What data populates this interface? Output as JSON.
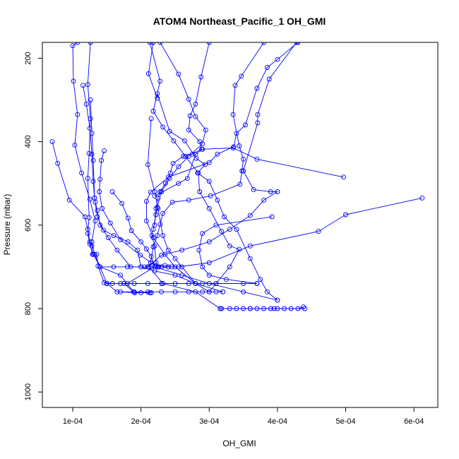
{
  "chart_data": {
    "type": "scatter",
    "title": "ATOM4 Northeast_Pacific_1 OH_GMI",
    "xlabel": "OH_GMI",
    "ylabel": "Pressure (mbar)",
    "x_ticks": [
      0.0001,
      0.0002,
      0.0003,
      0.0004,
      0.0005,
      0.0006
    ],
    "x_tick_labels": [
      "1e-04",
      "2e-04",
      "3e-04",
      "4e-04",
      "5e-04",
      "6e-04"
    ],
    "y_ticks": [
      200,
      400,
      600,
      800,
      1000
    ],
    "y_tick_labels": [
      "200",
      "400",
      "600",
      "800",
      "1000"
    ],
    "xlim": [
      5.55e-05,
      0.000635
    ],
    "ylim": [
      1037,
      162
    ],
    "y_reversed": true,
    "grid": false,
    "color": "#0000ff",
    "marker": "open-circle",
    "connect_points": true,
    "series": [
      {
        "points": [
          [
            0.000107,
            162
          ],
          [
            0.0001,
            170
          ],
          [
            0.000101,
            255
          ],
          [
            0.000107,
            335
          ],
          [
            0.000103,
            408
          ],
          [
            0.000113,
            475
          ],
          [
            0.000125,
            538
          ],
          [
            0.000133,
            590
          ],
          [
            0.000128,
            640
          ],
          [
            0.000132,
            670
          ],
          [
            0.00014,
            700
          ],
          [
            0.00015,
            740
          ],
          [
            0.000165,
            760
          ],
          [
            0.0002,
            762
          ],
          [
            0.000215,
            762
          ]
        ]
      },
      {
        "points": [
          [
            0.000126,
            162
          ],
          [
            0.000122,
            263
          ],
          [
            0.000126,
            345
          ],
          [
            0.000124,
            428
          ],
          [
            0.000122,
            488
          ],
          [
            0.000124,
            582
          ],
          [
            0.000122,
            620
          ],
          [
            0.000125,
            645
          ],
          [
            0.000129,
            670
          ],
          [
            0.000135,
            670
          ],
          [
            0.000137,
            698
          ],
          [
            0.000146,
            738
          ],
          [
            0.000158,
            740
          ],
          [
            0.000175,
            740
          ],
          [
            0.000191,
            762
          ],
          [
            0.000213,
            762
          ]
        ]
      },
      {
        "points": [
          [
            7e-05,
            400
          ],
          [
            7.8e-05,
            452
          ],
          [
            9.5e-05,
            540
          ],
          [
            0.000118,
            580
          ],
          [
            0.000122,
            610
          ],
          [
            0.000125,
            640
          ],
          [
            0.000128,
            650
          ],
          [
            0.00013,
            670
          ],
          [
            0.00014,
            700
          ],
          [
            0.00017,
            720
          ],
          [
            0.000189,
            760
          ]
        ]
      },
      {
        "points": [
          [
            0.000115,
            265
          ],
          [
            0.00012,
            310
          ],
          [
            0.000125,
            368
          ],
          [
            0.000128,
            430
          ],
          [
            0.00013,
            495
          ],
          [
            0.000132,
            535
          ],
          [
            0.000133,
            545
          ],
          [
            0.000136,
            565
          ],
          [
            0.00014,
            600
          ],
          [
            0.000152,
            630
          ],
          [
            0.000165,
            660
          ],
          [
            0.000185,
            700
          ],
          [
            0.000205,
            700
          ],
          [
            0.000225,
            700
          ],
          [
            0.00024,
            700
          ]
        ]
      },
      {
        "points": [
          [
            0.000126,
            300
          ],
          [
            0.000128,
            380
          ],
          [
            0.00013,
            445
          ],
          [
            0.000132,
            535
          ],
          [
            0.000136,
            580
          ],
          [
            0.000145,
            612
          ],
          [
            0.00016,
            625
          ],
          [
            0.000181,
            640
          ],
          [
            0.000195,
            660
          ],
          [
            0.0002,
            700
          ],
          [
            0.00022,
            710
          ],
          [
            0.00025,
            720
          ],
          [
            0.00028,
            740
          ],
          [
            0.00032,
            760
          ]
        ]
      },
      {
        "points": [
          [
            0.000146,
            422
          ],
          [
            0.000142,
            445
          ],
          [
            0.00014,
            490
          ],
          [
            0.000139,
            520
          ],
          [
            0.000143,
            560
          ],
          [
            0.000155,
            595
          ],
          [
            0.00017,
            635
          ],
          [
            0.000199,
            672
          ],
          [
            0.000221,
            697
          ],
          [
            0.000235,
            697
          ],
          [
            0.000245,
            700
          ]
        ]
      },
      {
        "points": [
          [
            0.000158,
            520
          ],
          [
            0.000172,
            548
          ],
          [
            0.000181,
            583
          ],
          [
            0.000186,
            613
          ],
          [
            0.0002,
            640
          ],
          [
            0.000208,
            657
          ],
          [
            0.000215,
            675
          ],
          [
            0.00022,
            700
          ],
          [
            0.00026,
            720
          ],
          [
            0.0003,
            740
          ],
          [
            0.00035,
            760
          ],
          [
            0.0004,
            780
          ]
        ]
      },
      {
        "points": [
          [
            0.000213,
            162
          ],
          [
            0.000228,
            255
          ],
          [
            0.000218,
            327
          ],
          [
            0.000232,
            365
          ],
          [
            0.000248,
            398
          ],
          [
            0.000265,
            435
          ],
          [
            0.000284,
            475
          ],
          [
            0.000286,
            520
          ],
          [
            0.0003,
            560
          ],
          [
            0.000318,
            615
          ],
          [
            0.00033,
            650
          ],
          [
            0.000344,
            658
          ],
          [
            0.00033,
            700
          ],
          [
            0.00031,
            740
          ],
          [
            0.0003,
            760
          ]
        ]
      },
      {
        "points": [
          [
            0.000218,
            162
          ],
          [
            0.000211,
            237
          ],
          [
            0.000224,
            296
          ],
          [
            0.000224,
            285
          ],
          [
            0.000242,
            375
          ],
          [
            0.000264,
            398
          ],
          [
            0.000281,
            440
          ],
          [
            0.000294,
            455
          ],
          [
            0.000283,
            475
          ],
          [
            0.0003,
            495
          ],
          [
            0.000312,
            540
          ],
          [
            0.000322,
            580
          ],
          [
            0.00034,
            610
          ],
          [
            0.00036,
            680
          ],
          [
            0.000375,
            730
          ],
          [
            0.000385,
            760
          ],
          [
            0.0004,
            780
          ]
        ]
      },
      {
        "points": [
          [
            0.000228,
            162
          ],
          [
            0.000255,
            238
          ],
          [
            0.00027,
            298
          ],
          [
            0.00028,
            340
          ],
          [
            0.000295,
            372
          ],
          [
            0.00029,
            405
          ],
          [
            0.00027,
            435
          ],
          [
            0.000255,
            460
          ],
          [
            0.000242,
            488
          ],
          [
            0.00023,
            520
          ],
          [
            0.000224,
            557
          ],
          [
            0.000222,
            575
          ],
          [
            0.000218,
            610
          ],
          [
            0.000216,
            625
          ],
          [
            0.00022,
            650
          ],
          [
            0.000222,
            690
          ],
          [
            0.000226,
            700
          ]
        ]
      },
      {
        "points": [
          [
            0.0003,
            162
          ],
          [
            0.000288,
            245
          ],
          [
            0.00028,
            310
          ],
          [
            0.000272,
            338
          ],
          [
            0.00027,
            372
          ],
          [
            0.000286,
            400
          ],
          [
            0.000289,
            418
          ],
          [
            0.000275,
            430
          ],
          [
            0.000262,
            435
          ],
          [
            0.000247,
            452
          ],
          [
            0.000243,
            475
          ],
          [
            0.000236,
            500
          ],
          [
            0.000228,
            520
          ],
          [
            0.000225,
            535
          ],
          [
            0.000222,
            560
          ],
          [
            0.00022,
            600
          ]
        ]
      },
      {
        "points": [
          [
            0.00043,
            162
          ],
          [
            0.0004,
            203
          ],
          [
            0.000385,
            222
          ],
          [
            0.00037,
            272
          ],
          [
            0.000353,
            360
          ],
          [
            0.00034,
            380
          ],
          [
            0.000336,
            412
          ],
          [
            0.000312,
            430
          ],
          [
            0.0003,
            450
          ],
          [
            0.00024,
            485
          ],
          [
            0.000214,
            521
          ],
          [
            0.000208,
            543
          ],
          [
            0.000208,
            590
          ],
          [
            0.000218,
            630
          ],
          [
            0.000235,
            670
          ],
          [
            0.00025,
            700
          ],
          [
            0.00028,
            740
          ]
        ]
      },
      {
        "points": [
          [
            0.00038,
            162
          ],
          [
            0.000347,
            243
          ],
          [
            0.000338,
            265
          ],
          [
            0.000335,
            335
          ],
          [
            0.000344,
            410
          ],
          [
            0.00035,
            442
          ],
          [
            0.000348,
            470
          ],
          [
            0.000345,
            502
          ],
          [
            0.000302,
            530
          ],
          [
            0.00027,
            540
          ],
          [
            0.000246,
            545
          ],
          [
            0.000232,
            572
          ],
          [
            0.000228,
            598
          ],
          [
            0.000224,
            625
          ],
          [
            0.000218,
            652
          ],
          [
            0.000214,
            690
          ],
          [
            0.000212,
            700
          ],
          [
            0.000232,
            740
          ],
          [
            0.00028,
            760
          ],
          [
            0.000316,
            800
          ],
          [
            0.00036,
            800
          ],
          [
            0.000395,
            800
          ],
          [
            0.00044,
            800
          ]
        ]
      },
      {
        "points": [
          [
            0.000428,
            162
          ],
          [
            0.000388,
            250
          ],
          [
            0.000371,
            335
          ],
          [
            0.000371,
            355
          ],
          [
            0.00035,
            470
          ],
          [
            0.000365,
            515
          ],
          [
            0.00039,
            520
          ],
          [
            0.0004,
            520
          ],
          [
            0.00038,
            540
          ],
          [
            0.00036,
            577
          ],
          [
            0.00033,
            610
          ],
          [
            0.0003,
            640
          ],
          [
            0.00026,
            660
          ],
          [
            0.00023,
            672
          ],
          [
            0.00021,
            700
          ]
        ]
      },
      {
        "points": [
          [
            0.000612,
            535
          ],
          [
            0.0005,
            575
          ],
          [
            0.00046,
            615
          ],
          [
            0.00036,
            650
          ],
          [
            0.0003,
            690
          ],
          [
            0.000255,
            700
          ],
          [
            0.00022,
            700
          ],
          [
            0.00018,
            740
          ],
          [
            0.00015,
            740
          ]
        ]
      },
      {
        "points": [
          [
            0.000497,
            485
          ],
          [
            0.00037,
            442
          ],
          [
            0.000335,
            415
          ],
          [
            0.00029,
            418
          ],
          [
            0.00028,
            430
          ],
          [
            0.000268,
            488
          ],
          [
            0.000255,
            500
          ],
          [
            0.00022,
            530
          ]
        ]
      },
      {
        "points": [
          [
            0.000392,
            580
          ],
          [
            0.00031,
            600
          ],
          [
            0.00029,
            620
          ],
          [
            0.000285,
            660
          ],
          [
            0.00029,
            700
          ],
          [
            0.0003,
            720
          ],
          [
            0.000325,
            730
          ],
          [
            0.00037,
            740
          ]
        ]
      },
      {
        "points": [
          [
            0.000215,
            345
          ],
          [
            0.00021,
            455
          ],
          [
            0.00022,
            520
          ],
          [
            0.000225,
            560
          ],
          [
            0.000232,
            625
          ],
          [
            0.00024,
            660
          ],
          [
            0.00025,
            680
          ],
          [
            0.00026,
            700
          ],
          [
            0.00028,
            740
          ],
          [
            0.0003,
            760
          ]
        ]
      },
      {
        "points": [
          [
            0.00014,
            700
          ],
          [
            0.00016,
            700
          ],
          [
            0.00018,
            700
          ],
          [
            0.0002,
            700
          ],
          [
            0.00021,
            700
          ],
          [
            0.00022,
            700
          ],
          [
            0.00023,
            700
          ],
          [
            0.00024,
            700
          ]
        ]
      },
      {
        "points": [
          [
            0.00015,
            740
          ],
          [
            0.00017,
            740
          ],
          [
            0.00019,
            740
          ],
          [
            0.00021,
            740
          ],
          [
            0.00023,
            740
          ],
          [
            0.00025,
            740
          ],
          [
            0.00027,
            740
          ],
          [
            0.00029,
            740
          ],
          [
            0.00031,
            740
          ],
          [
            0.00035,
            740
          ],
          [
            0.00037,
            740
          ]
        ]
      },
      {
        "points": [
          [
            0.00017,
            760
          ],
          [
            0.00019,
            760
          ],
          [
            0.00021,
            760
          ],
          [
            0.00023,
            760
          ],
          [
            0.00025,
            760
          ],
          [
            0.00027,
            760
          ],
          [
            0.00029,
            760
          ],
          [
            0.00031,
            760
          ],
          [
            0.00032,
            760
          ]
        ]
      },
      {
        "points": [
          [
            0.000318,
            800
          ],
          [
            0.00033,
            800
          ],
          [
            0.00034,
            800
          ],
          [
            0.00035,
            800
          ],
          [
            0.00036,
            800
          ],
          [
            0.00037,
            800
          ],
          [
            0.00038,
            800
          ],
          [
            0.00039,
            800
          ],
          [
            0.0004,
            800
          ],
          [
            0.00041,
            800
          ],
          [
            0.00042,
            800
          ],
          [
            0.00043,
            800
          ],
          [
            0.000438,
            796
          ]
        ]
      }
    ]
  }
}
